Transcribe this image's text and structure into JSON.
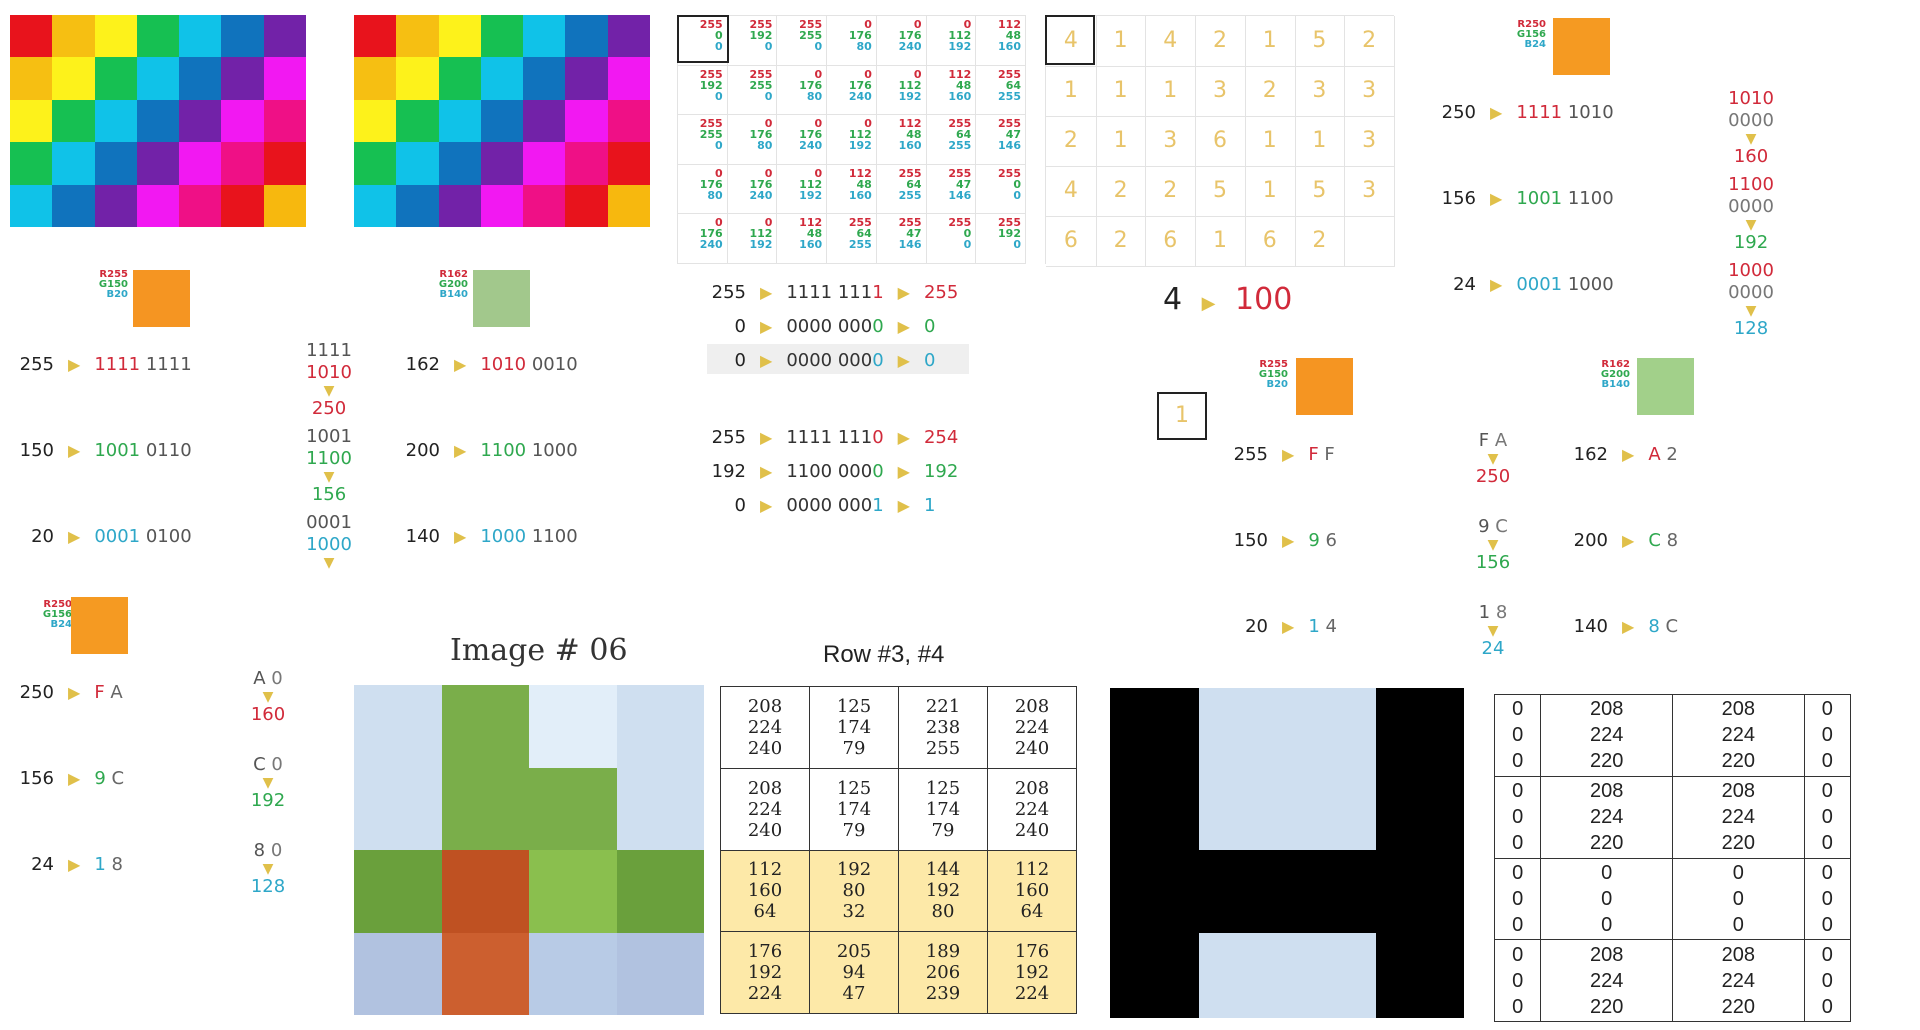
{
  "palette": {
    "red": "#e8131c",
    "orange": "#f6bf12",
    "yellow": "#fdf21b",
    "green": "#16c052",
    "cyan": "#10c2e8",
    "blue": "#1073bd",
    "purple": "#7222a8",
    "magenta": "#f218f2",
    "pink": "#ef1086",
    "amber": "#f7b80e"
  },
  "mosaic_rows": [
    [
      "red",
      "orange",
      "yellow",
      "green",
      "cyan",
      "blue",
      "purple"
    ],
    [
      "orange",
      "yellow",
      "green",
      "cyan",
      "blue",
      "purple",
      "magenta"
    ],
    [
      "yellow",
      "green",
      "cyan",
      "blue",
      "purple",
      "magenta",
      "pink"
    ],
    [
      "green",
      "cyan",
      "blue",
      "purple",
      "magenta",
      "pink",
      "red"
    ],
    [
      "cyan",
      "blue",
      "purple",
      "magenta",
      "pink",
      "red",
      "amber"
    ]
  ],
  "rgb_table": [
    [
      [
        "255",
        "0",
        "0"
      ],
      [
        "255",
        "192",
        "0"
      ],
      [
        "255",
        "255",
        "0"
      ],
      [
        "0",
        "176",
        "80"
      ],
      [
        "0",
        "176",
        "240"
      ],
      [
        "0",
        "112",
        "192"
      ],
      [
        "112",
        "48",
        "160"
      ]
    ],
    [
      [
        "255",
        "192",
        "0"
      ],
      [
        "255",
        "255",
        "0"
      ],
      [
        "0",
        "176",
        "80"
      ],
      [
        "0",
        "176",
        "240"
      ],
      [
        "0",
        "112",
        "192"
      ],
      [
        "112",
        "48",
        "160"
      ],
      [
        "255",
        "64",
        "255"
      ]
    ],
    [
      [
        "255",
        "255",
        "0"
      ],
      [
        "0",
        "176",
        "80"
      ],
      [
        "0",
        "176",
        "240"
      ],
      [
        "0",
        "112",
        "192"
      ],
      [
        "112",
        "48",
        "160"
      ],
      [
        "255",
        "64",
        "255"
      ],
      [
        "255",
        "47",
        "146"
      ]
    ],
    [
      [
        "0",
        "176",
        "80"
      ],
      [
        "0",
        "176",
        "240"
      ],
      [
        "0",
        "112",
        "192"
      ],
      [
        "112",
        "48",
        "160"
      ],
      [
        "255",
        "64",
        "255"
      ],
      [
        "255",
        "47",
        "146"
      ],
      [
        "255",
        "0",
        "0"
      ]
    ],
    [
      [
        "0",
        "176",
        "240"
      ],
      [
        "0",
        "112",
        "192"
      ],
      [
        "112",
        "48",
        "160"
      ],
      [
        "255",
        "64",
        "255"
      ],
      [
        "255",
        "47",
        "146"
      ],
      [
        "255",
        "0",
        "0"
      ],
      [
        "255",
        "192",
        "0"
      ]
    ]
  ],
  "index_table": [
    [
      "4",
      "1",
      "4",
      "2",
      "1",
      "5",
      "2"
    ],
    [
      "1",
      "1",
      "1",
      "3",
      "2",
      "3",
      "3"
    ],
    [
      "2",
      "1",
      "3",
      "6",
      "1",
      "1",
      "3"
    ],
    [
      "4",
      "2",
      "2",
      "5",
      "1",
      "5",
      "3"
    ],
    [
      "6",
      "2",
      "6",
      "1",
      "6",
      "2",
      ""
    ]
  ],
  "index_example": {
    "left": "4",
    "right": "100"
  },
  "one_box": "1",
  "swatches": {
    "orange_255": {
      "r": "R255",
      "g": "G150",
      "b": "B20"
    },
    "green_162": {
      "r": "R162",
      "g": "G200",
      "b": "B140"
    },
    "orange_250": {
      "r": "R250",
      "g": "G156",
      "b": "B24"
    }
  },
  "bin_rows_a": [
    {
      "n": "255",
      "hi": "1111",
      "lo": "1111",
      "color": "r"
    },
    {
      "n": "150",
      "hi": "1001",
      "lo": "0110",
      "color": "g"
    },
    {
      "n": "20",
      "hi": "0001",
      "lo": "0100",
      "color": "b"
    }
  ],
  "bin_stack_a": [
    {
      "hi": "1111",
      "lo": "1010",
      "val": "250",
      "color": "r"
    },
    {
      "hi": "1001",
      "lo": "1100",
      "val": "156",
      "color": "g"
    },
    {
      "hi": "0001",
      "lo": "1000",
      "val": "",
      "color": "b"
    }
  ],
  "bin_rows_b": [
    {
      "n": "162",
      "hi": "1010",
      "lo": "0010",
      "color": "r"
    },
    {
      "n": "200",
      "hi": "1100",
      "lo": "1000",
      "color": "g"
    },
    {
      "n": "140",
      "hi": "1000",
      "lo": "1100",
      "color": "b"
    }
  ],
  "bin_rows_c": [
    {
      "n": "255",
      "pre": "1111 111",
      "last": "1",
      "res": "255",
      "color": "r"
    },
    {
      "n": "0",
      "pre": "0000 000",
      "last": "0",
      "res": "0",
      "color": "g"
    },
    {
      "n": "0",
      "pre": "0000 000",
      "last": "0",
      "res": "0",
      "color": "b"
    }
  ],
  "bin_rows_d": [
    {
      "n": "255",
      "pre": "1111 111",
      "last": "0",
      "res": "254",
      "color": "r"
    },
    {
      "n": "192",
      "pre": "1100 000",
      "last": "0",
      "res": "192",
      "color": "g"
    },
    {
      "n": "0",
      "pre": "0000 000",
      "last": "1",
      "res": "1",
      "color": "b"
    }
  ],
  "bin_rows_e": [
    {
      "n": "250",
      "hi": "1111",
      "lo": "1010",
      "color": "r"
    },
    {
      "n": "156",
      "hi": "1001",
      "lo": "1100",
      "color": "g"
    },
    {
      "n": "24",
      "hi": "0001",
      "lo": "1000",
      "color": "b"
    }
  ],
  "bin_stack_e": [
    {
      "hi": "1010",
      "lo": "0000",
      "val": "160",
      "color": "r"
    },
    {
      "hi": "1100",
      "lo": "0000",
      "val": "192",
      "color": "g"
    },
    {
      "hi": "1000",
      "lo": "0000",
      "val": "128",
      "color": "b"
    }
  ],
  "hex_rows_f": [
    {
      "n": "255",
      "h1": "F",
      "h2": "F",
      "color": "r"
    },
    {
      "n": "150",
      "h1": "9",
      "h2": "6",
      "color": "g"
    },
    {
      "n": "20",
      "h1": "1",
      "h2": "4",
      "color": "b"
    }
  ],
  "hex_stack_f": [
    {
      "h1": "F",
      "h2": "A",
      "val": "250",
      "color": "r"
    },
    {
      "h1": "9",
      "h2": "C",
      "val": "156",
      "color": "g"
    },
    {
      "h1": "1",
      "h2": "8",
      "val": "24",
      "color": "b"
    }
  ],
  "hex_rows_g": [
    {
      "n": "162",
      "h1": "A",
      "h2": "2",
      "color": "r"
    },
    {
      "n": "200",
      "h1": "C",
      "h2": "8",
      "color": "g"
    },
    {
      "n": "140",
      "h1": "8",
      "h2": "C",
      "color": "b"
    }
  ],
  "hex_rows_h": [
    {
      "n": "250",
      "h1": "F",
      "h2": "A",
      "color": "r"
    },
    {
      "n": "156",
      "h1": "9",
      "h2": "C",
      "color": "g"
    },
    {
      "n": "24",
      "h1": "1",
      "h2": "8",
      "color": "b"
    }
  ],
  "hex_stack_h": [
    {
      "h1": "A",
      "h2": "0",
      "val": "160",
      "color": "r"
    },
    {
      "h1": "C",
      "h2": "0",
      "val": "192",
      "color": "g"
    },
    {
      "h1": "8",
      "h2": "0",
      "val": "128",
      "color": "b"
    }
  ],
  "image06": {
    "title": "Image # 06",
    "colors": [
      [
        "#cfdff0",
        "#7aae4a",
        "#e2eef9",
        "#cfdff0"
      ],
      [
        "#cfdff0",
        "#7aae4a",
        "#7aae4a",
        "#cfdff0"
      ],
      [
        "#6aa03c",
        "#bf5122",
        "#8abf4e",
        "#6aa03c"
      ],
      [
        "#b1c2e0",
        "#cc5f2f",
        "#b8cbe6",
        "#b1c2e0"
      ]
    ]
  },
  "row_table": {
    "title": "Row #3, #4",
    "cells": [
      [
        [
          "208",
          "224",
          "240"
        ],
        [
          "125",
          "174",
          "79"
        ],
        [
          "221",
          "238",
          "255"
        ],
        [
          "208",
          "224",
          "240"
        ]
      ],
      [
        [
          "208",
          "224",
          "240"
        ],
        [
          "125",
          "174",
          "79"
        ],
        [
          "125",
          "174",
          "79"
        ],
        [
          "208",
          "224",
          "240"
        ]
      ],
      [
        [
          "112",
          "160",
          "64"
        ],
        [
          "192",
          "80",
          "32"
        ],
        [
          "144",
          "192",
          "80"
        ],
        [
          "112",
          "160",
          "64"
        ]
      ],
      [
        [
          "176",
          "192",
          "224"
        ],
        [
          "205",
          "94",
          "47"
        ],
        [
          "189",
          "206",
          "239"
        ],
        [
          "176",
          "192",
          "224"
        ]
      ]
    ],
    "highlight_from_row": 2,
    "highlight_color": "#fde9a8"
  },
  "h_image": {
    "bg": "#cfdff0",
    "fg": "#000000"
  },
  "h_table": [
    [
      [
        "0",
        "0",
        "0"
      ],
      [
        "208",
        "224",
        "220"
      ],
      [
        "208",
        "224",
        "220"
      ],
      [
        "0",
        "0",
        "0"
      ]
    ],
    [
      [
        "0",
        "0",
        "0"
      ],
      [
        "208",
        "224",
        "220"
      ],
      [
        "208",
        "224",
        "220"
      ],
      [
        "0",
        "0",
        "0"
      ]
    ],
    [
      [
        "0",
        "0",
        "0"
      ],
      [
        "0",
        "0",
        "0"
      ],
      [
        "0",
        "0",
        "0"
      ],
      [
        "0",
        "0",
        "0"
      ]
    ],
    [
      [
        "0",
        "0",
        "0"
      ],
      [
        "208",
        "224",
        "220"
      ],
      [
        "208",
        "224",
        "220"
      ],
      [
        "0",
        "0",
        "0"
      ]
    ]
  ]
}
